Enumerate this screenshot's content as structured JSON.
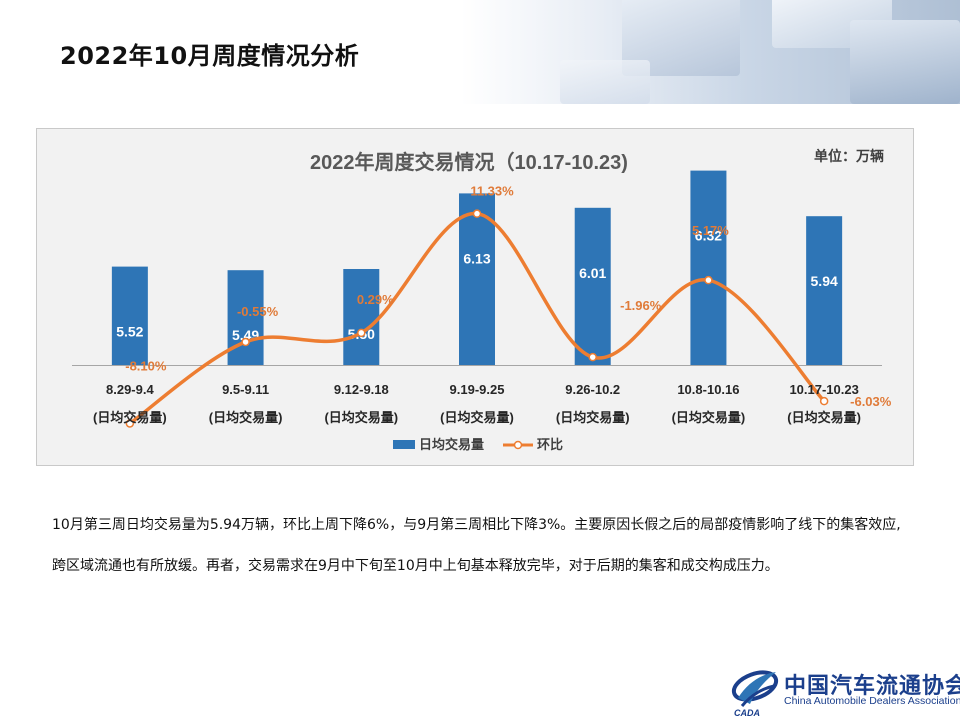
{
  "page": {
    "title": "2022年10月周度情况分析",
    "body_text": "10月第三周日均交易量为5.94万辆，环比上周下降6%，与9月第三周相比下降3%。主要原因长假之后的局部疫情影响了线下的集客效应,跨区域流通也有所放缓。再者，交易需求在9月中下旬至10月中上旬基本释放完毕，对于后期的集客和成交构成压力。"
  },
  "logo": {
    "cn": "中国汽车流通协会",
    "en": "China Automobile Dealers Association",
    "mark": "CADA"
  },
  "colors": {
    "bar": "#2e75b6",
    "line": "#ed7d31",
    "label_orange": "#e07b39"
  },
  "chart_data": {
    "type": "bar",
    "title": "2022年周度交易情况（10.17-10.23)",
    "unit": "单位：万辆",
    "categories": [
      "8.29-9.4",
      "9.5-9.11",
      "9.12-9.18",
      "9.19-9.25",
      "9.26-10.2",
      "10.8-10.16",
      "10.17-10.23"
    ],
    "category_sublabel": "(日均交易量)",
    "series": [
      {
        "name": "日均交易量",
        "type": "bar",
        "values": [
          5.52,
          5.49,
          5.5,
          6.13,
          6.01,
          6.32,
          5.94
        ],
        "labels": [
          "5.52",
          "5.49",
          "5.50",
          "6.13",
          "6.01",
          "6.32",
          "5.94"
        ]
      },
      {
        "name": "环比",
        "type": "line",
        "smooth": true,
        "values": [
          -8.1,
          -0.55,
          0.29,
          11.33,
          -1.96,
          5.17,
          -6.03
        ],
        "labels": [
          "-8.10%",
          "-0.55%",
          "0.29%",
          "11.33%",
          "-1.96%",
          "5.17%",
          "-6.03%"
        ]
      }
    ],
    "legend": "bottom",
    "grid": false
  }
}
